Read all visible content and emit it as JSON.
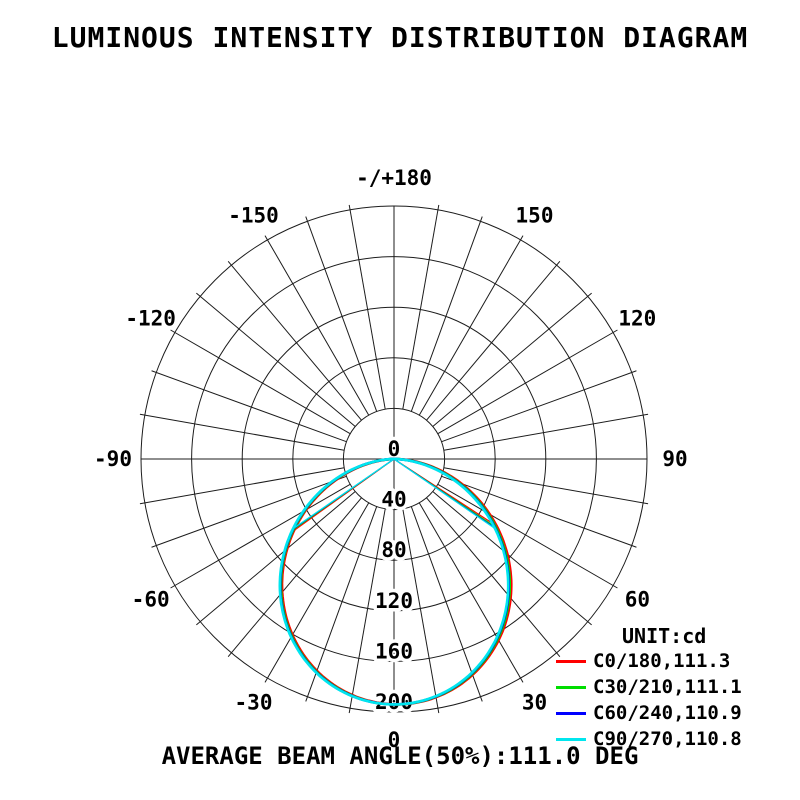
{
  "title": "LUMINOUS INTENSITY DISTRIBUTION DIAGRAM",
  "legend": {
    "unit_label": "UNIT:cd"
  },
  "footer": {
    "average_beam_angle_text": "AVERAGE BEAM ANGLE(50%):111.0 DEG"
  },
  "chart_data": {
    "type": "line",
    "subtype": "polar-luminous-intensity-distribution",
    "title": "LUMINOUS INTENSITY DISTRIBUTION DIAGRAM",
    "unit": "cd",
    "grid": true,
    "legend_position": "bottom-right",
    "radial_max_cd": 200,
    "radial_ticks_cd": [
      0,
      40,
      80,
      120,
      160,
      200
    ],
    "grid_spoke_step_deg": 10,
    "angle_ticks": [
      {
        "deg": 0,
        "label": "0"
      },
      {
        "deg": 30,
        "label": "30"
      },
      {
        "deg": 60,
        "label": "60"
      },
      {
        "deg": 90,
        "label": "90"
      },
      {
        "deg": 120,
        "label": "120"
      },
      {
        "deg": 150,
        "label": "150"
      },
      {
        "deg": 180,
        "label": "-/+180"
      },
      {
        "deg": -150,
        "label": "-150"
      },
      {
        "deg": -120,
        "label": "-120"
      },
      {
        "deg": -90,
        "label": "-90"
      },
      {
        "deg": -60,
        "label": "-60"
      },
      {
        "deg": -30,
        "label": "-30"
      }
    ],
    "series": [
      {
        "name": "C0/180",
        "label": "C0/180,111.3",
        "color": "#ff0000",
        "beam_angle_50pct_deg": 111.3,
        "peak_cd": 194,
        "tilt_deg": 1.2
      },
      {
        "name": "C30/210",
        "label": "C30/210,111.1",
        "color": "#00dd00",
        "beam_angle_50pct_deg": 111.1,
        "peak_cd": 194,
        "tilt_deg": 0.6
      },
      {
        "name": "C60/240",
        "label": "C60/240,110.9",
        "color": "#0000ff",
        "beam_angle_50pct_deg": 110.9,
        "peak_cd": 194,
        "tilt_deg": 0.2
      },
      {
        "name": "C90/270",
        "label": "C90/270,110.8",
        "color": "#00e6ee",
        "beam_angle_50pct_deg": 110.8,
        "peak_cd": 194,
        "tilt_deg": 0.0
      }
    ],
    "average_beam_angle_50pct_deg": 111.0
  }
}
